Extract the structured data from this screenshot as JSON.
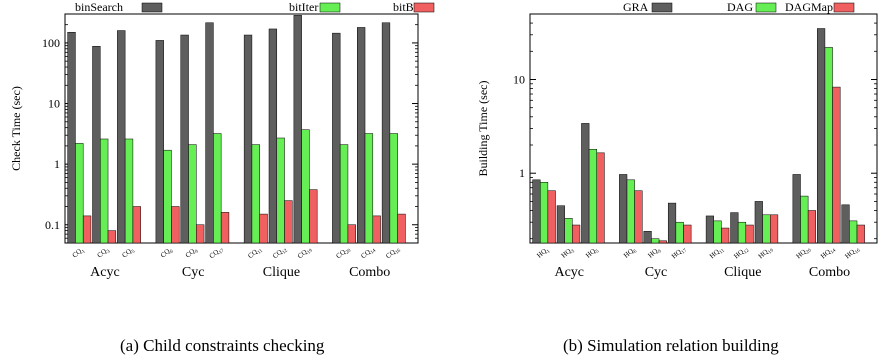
{
  "colors": {
    "series1": "#5e5e5e",
    "series2": "#66ee55",
    "series3": "#f06060"
  },
  "captions": {
    "left": "(a)  Child constraints checking",
    "right": "(b)  Simulation relation building"
  },
  "chart_data": [
    {
      "type": "bar",
      "ylabel": "Check Time (sec)",
      "yscale": "log",
      "ylim": [
        0.05,
        300
      ],
      "yticks": [
        {
          "value": 0.1,
          "label": "0.1"
        },
        {
          "value": 1,
          "label": "1"
        },
        {
          "value": 10,
          "label": "10"
        },
        {
          "value": 100,
          "label": "100"
        }
      ],
      "legend": [
        "binSearch",
        "bitIter",
        "bitBat"
      ],
      "legend_position": "top",
      "groups": [
        {
          "name": "Acyc",
          "categories": [
            "CQ1",
            "CQ3",
            "CQ5"
          ]
        },
        {
          "name": "Cyc",
          "categories": [
            "CQ6",
            "CQ9",
            "CQ17"
          ]
        },
        {
          "name": "Clique",
          "categories": [
            "CQ11",
            "CQ12",
            "CQ19"
          ]
        },
        {
          "name": "Combo",
          "categories": [
            "CQ20",
            "CQ14",
            "CQ16"
          ]
        }
      ],
      "series": [
        {
          "name": "binSearch",
          "values": [
            150,
            88,
            160,
            110,
            135,
            215,
            135,
            170,
            285,
            145,
            180,
            215
          ]
        },
        {
          "name": "bitIter",
          "values": [
            2.2,
            2.6,
            2.6,
            1.7,
            2.1,
            3.2,
            2.1,
            2.7,
            3.7,
            2.1,
            3.2,
            3.2
          ]
        },
        {
          "name": "bitBat",
          "values": [
            0.14,
            0.08,
            0.2,
            0.2,
            0.1,
            0.16,
            0.15,
            0.25,
            0.38,
            0.1,
            0.14,
            0.15
          ]
        }
      ]
    },
    {
      "type": "bar",
      "ylabel": "Building Time (sec)",
      "yscale": "log",
      "ylim": [
        0.18,
        50
      ],
      "yticks": [
        {
          "value": 1,
          "label": "1"
        },
        {
          "value": 10,
          "label": "10"
        }
      ],
      "legend": [
        "GRA",
        "DAG",
        "DAGMap"
      ],
      "legend_position": "top",
      "groups": [
        {
          "name": "Acyc",
          "categories": [
            "HQ1",
            "HQ3",
            "HQ5"
          ]
        },
        {
          "name": "Cyc",
          "categories": [
            "HQ6",
            "HQ9",
            "HQ17"
          ]
        },
        {
          "name": "Clique",
          "categories": [
            "HQ11",
            "HQ12",
            "HQ19"
          ]
        },
        {
          "name": "Combo",
          "categories": [
            "HQ20",
            "HQ14",
            "HQ16"
          ]
        }
      ],
      "series": [
        {
          "name": "GRA",
          "values": [
            0.85,
            0.45,
            3.4,
            0.97,
            0.24,
            0.48,
            0.35,
            0.38,
            0.5,
            0.97,
            35,
            0.46
          ]
        },
        {
          "name": "DAG",
          "values": [
            0.8,
            0.33,
            1.8,
            0.85,
            0.2,
            0.3,
            0.31,
            0.3,
            0.36,
            0.57,
            22,
            0.31
          ]
        },
        {
          "name": "DAGMap",
          "values": [
            0.65,
            0.28,
            1.65,
            0.65,
            0.19,
            0.28,
            0.26,
            0.28,
            0.36,
            0.4,
            8.3,
            0.28
          ]
        }
      ]
    }
  ]
}
